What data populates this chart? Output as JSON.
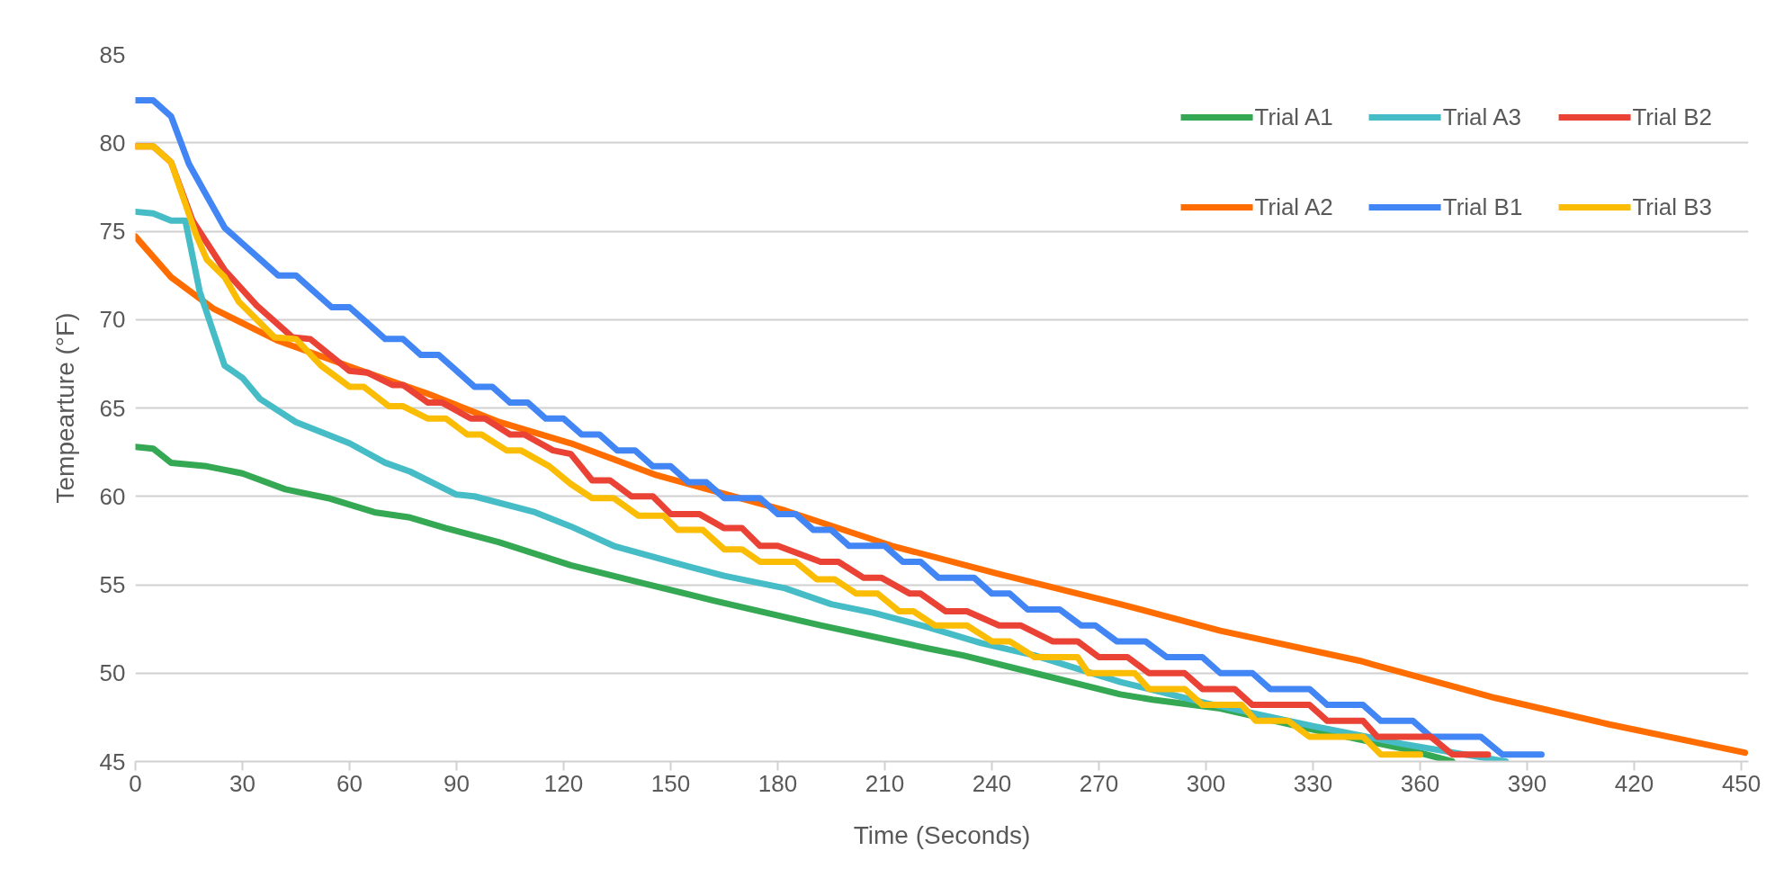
{
  "chart_data": {
    "type": "line",
    "xlabel": "Time (Seconds)",
    "ylabel": "Tempearture (°F)",
    "xlim": [
      0,
      452
    ],
    "ylim": [
      45,
      85
    ],
    "xticks": [
      0,
      30,
      60,
      90,
      120,
      150,
      180,
      210,
      240,
      270,
      300,
      330,
      360,
      390,
      420,
      450
    ],
    "yticks": [
      45,
      50,
      55,
      60,
      65,
      70,
      75,
      80,
      85
    ],
    "grid": "y",
    "legend": "top right",
    "marker": "none",
    "line_style": "solid",
    "series": [
      {
        "name": "Trial A1",
        "color": "#34a853",
        "x": [
          0,
          5,
          10,
          20,
          30,
          42,
          54,
          67,
          77,
          87,
          102,
          122,
          142,
          162,
          192,
          222,
          232,
          252,
          276,
          285,
          304,
          330,
          356,
          369
        ],
        "values": [
          62.8,
          62.7,
          61.9,
          61.7,
          61.3,
          60.4,
          59.9,
          59.1,
          58.8,
          58.2,
          57.4,
          56.1,
          55.1,
          54.1,
          52.7,
          51.4,
          51.0,
          50.0,
          48.8,
          48.5,
          48.0,
          46.8,
          45.7,
          45.0
        ]
      },
      {
        "name": "Trial A2",
        "color": "#ff6d01",
        "x": [
          0,
          10,
          22,
          40,
          62,
          82,
          102,
          122,
          146,
          182,
          212,
          242,
          276,
          304,
          343,
          381,
          413,
          451
        ],
        "values": [
          74.7,
          72.4,
          70.6,
          68.8,
          67.2,
          65.8,
          64.2,
          63.0,
          61.2,
          59.2,
          57.2,
          55.6,
          53.9,
          52.4,
          50.7,
          48.6,
          47.1,
          45.5
        ]
      },
      {
        "name": "Trial A3",
        "color": "#46bdc6",
        "x": [
          0,
          5,
          10,
          14,
          18,
          25,
          30,
          35,
          45,
          60,
          70,
          77,
          90,
          95,
          112,
          122,
          134,
          150,
          165,
          182,
          195,
          207,
          222,
          237,
          252,
          276,
          300,
          330,
          355,
          384
        ],
        "values": [
          76.1,
          76.0,
          75.6,
          75.6,
          71.6,
          67.4,
          66.7,
          65.5,
          64.2,
          63.0,
          61.9,
          61.4,
          60.1,
          60.0,
          59.1,
          58.3,
          57.2,
          56.3,
          55.5,
          54.8,
          53.9,
          53.4,
          52.6,
          51.7,
          51.0,
          49.5,
          48.3,
          47.0,
          46.0,
          45.0
        ]
      },
      {
        "name": "Trial B1",
        "color": "#4285f4",
        "x": [
          0,
          5,
          10,
          15,
          20,
          25,
          30,
          35,
          40,
          45,
          50,
          55,
          60,
          65,
          70,
          75,
          80,
          85,
          90,
          95,
          100,
          105,
          110,
          115,
          120,
          125,
          130,
          135,
          140,
          145,
          150,
          155,
          160,
          165,
          175,
          180,
          185,
          190,
          195,
          200,
          210,
          215,
          220,
          225,
          235,
          240,
          245,
          250,
          259,
          265,
          269,
          275,
          283,
          289,
          299,
          304,
          313,
          318,
          329,
          334,
          344,
          349,
          358,
          363,
          377,
          383,
          394
        ],
        "values": [
          82.4,
          82.4,
          81.5,
          78.8,
          77.0,
          75.2,
          74.3,
          73.4,
          72.5,
          72.5,
          71.6,
          70.7,
          70.7,
          69.8,
          68.9,
          68.9,
          68.0,
          68.0,
          67.1,
          66.2,
          66.2,
          65.3,
          65.3,
          64.4,
          64.4,
          63.5,
          63.5,
          62.6,
          62.6,
          61.7,
          61.7,
          60.8,
          60.8,
          59.9,
          59.9,
          59.0,
          59.0,
          58.1,
          58.1,
          57.2,
          57.2,
          56.3,
          56.3,
          55.4,
          55.4,
          54.5,
          54.5,
          53.6,
          53.6,
          52.7,
          52.7,
          51.8,
          51.8,
          50.9,
          50.9,
          50.0,
          50.0,
          49.1,
          49.1,
          48.2,
          48.2,
          47.3,
          47.3,
          46.4,
          46.4,
          45.4,
          45.4
        ]
      },
      {
        "name": "Trial B2",
        "color": "#ea4335",
        "x": [
          0,
          5,
          10,
          16,
          25,
          34,
          44,
          49,
          60,
          65,
          72,
          75,
          82,
          86,
          94,
          98,
          105,
          109,
          117,
          122,
          128,
          133,
          139,
          145,
          150,
          158,
          165,
          170,
          175,
          180,
          192,
          197,
          204,
          209,
          217,
          220,
          227,
          233,
          242,
          248,
          257,
          264,
          270,
          278,
          284,
          294,
          299,
          308,
          313,
          329,
          334,
          344,
          348,
          363,
          369,
          379
        ],
        "values": [
          79.8,
          79.8,
          78.9,
          75.6,
          72.8,
          70.8,
          69.0,
          68.9,
          67.1,
          67.0,
          66.3,
          66.3,
          65.3,
          65.3,
          64.4,
          64.4,
          63.5,
          63.5,
          62.6,
          62.4,
          60.9,
          60.9,
          60.0,
          60.0,
          59.0,
          59.0,
          58.2,
          58.2,
          57.2,
          57.2,
          56.3,
          56.3,
          55.4,
          55.4,
          54.5,
          54.5,
          53.5,
          53.5,
          52.7,
          52.7,
          51.8,
          51.8,
          50.9,
          50.9,
          50.0,
          50.0,
          49.1,
          49.1,
          48.2,
          48.2,
          47.3,
          47.3,
          46.4,
          46.4,
          45.4,
          45.4
        ]
      },
      {
        "name": "Trial B3",
        "color": "#fbbc04",
        "x": [
          0,
          5,
          10,
          17,
          20,
          25,
          29,
          39,
          45,
          52,
          60,
          64,
          71,
          75,
          82,
          87,
          93,
          97,
          104,
          108,
          116,
          122,
          128,
          134,
          141,
          148,
          152,
          159,
          165,
          170,
          175,
          185,
          191,
          196,
          202,
          208,
          214,
          218,
          224,
          233,
          240,
          245,
          252,
          264,
          267,
          280,
          284,
          294,
          299,
          310,
          314,
          323,
          329,
          344,
          349,
          360
        ],
        "values": [
          79.8,
          79.8,
          78.9,
          74.8,
          73.4,
          72.4,
          71.0,
          69.0,
          68.9,
          67.4,
          66.2,
          66.2,
          65.1,
          65.1,
          64.4,
          64.4,
          63.5,
          63.5,
          62.6,
          62.6,
          61.7,
          60.7,
          59.9,
          59.9,
          58.9,
          58.9,
          58.1,
          58.1,
          57.0,
          57.0,
          56.3,
          56.3,
          55.3,
          55.3,
          54.5,
          54.5,
          53.5,
          53.5,
          52.7,
          52.7,
          51.8,
          51.8,
          50.9,
          50.9,
          50.0,
          50.0,
          49.1,
          49.1,
          48.2,
          48.2,
          47.3,
          47.3,
          46.4,
          46.4,
          45.4,
          45.4
        ]
      }
    ]
  }
}
